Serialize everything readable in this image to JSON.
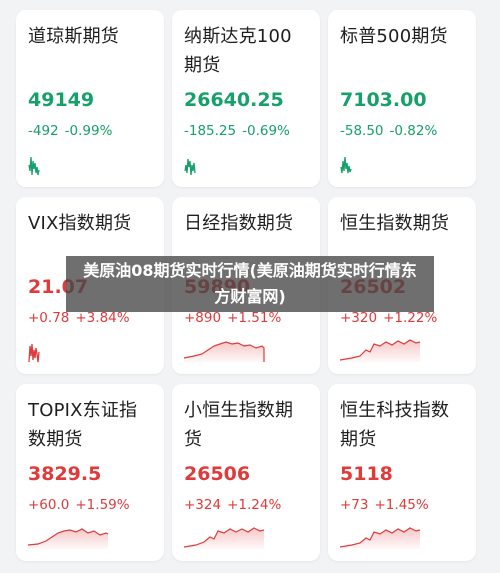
{
  "banner": {
    "text": "美原油08期货实时行情(美原油期货实时行情东方财富网)"
  },
  "cards": [
    {
      "name": "道琼斯期货",
      "price": "49149",
      "change": "-492",
      "pct": "-0.99%",
      "dir": "down",
      "color": "#16a06a",
      "spark_kind": "tiny"
    },
    {
      "name": "纳斯达克100期货",
      "price": "26640.25",
      "change": "-185.25",
      "pct": "-0.69%",
      "dir": "down",
      "color": "#16a06a",
      "spark_kind": "tiny"
    },
    {
      "name": "标普500期货",
      "price": "7103.00",
      "change": "-58.50",
      "pct": "-0.82%",
      "dir": "down",
      "color": "#16a06a",
      "spark_kind": "tiny"
    },
    {
      "name": "VIX指数期货",
      "price": "21.07",
      "change": "+0.78",
      "pct": "+3.84%",
      "dir": "up",
      "color": "#e03a3a",
      "spark_kind": "tiny"
    },
    {
      "name": "日经指数期货",
      "price": "59890",
      "change": "+890",
      "pct": "+1.51%",
      "dir": "up",
      "color": "#e03a3a",
      "spark_kind": "wide"
    },
    {
      "name": "恒生指数期货",
      "price": "26502",
      "change": "+320",
      "pct": "+1.22%",
      "dir": "up",
      "color": "#e03a3a",
      "spark_kind": "wide"
    },
    {
      "name": "TOPIX东证指数期货",
      "price": "3829.5",
      "change": "+60.0",
      "pct": "+1.59%",
      "dir": "up",
      "color": "#e03a3a",
      "spark_kind": "wide"
    },
    {
      "name": "小恒生指数期货",
      "price": "26506",
      "change": "+324",
      "pct": "+1.24%",
      "dir": "up",
      "color": "#e03a3a",
      "spark_kind": "wide"
    },
    {
      "name": "恒生科技指数期货",
      "price": "5118",
      "change": "+73",
      "pct": "+1.45%",
      "dir": "up",
      "color": "#e03a3a",
      "spark_kind": "wide"
    }
  ]
}
